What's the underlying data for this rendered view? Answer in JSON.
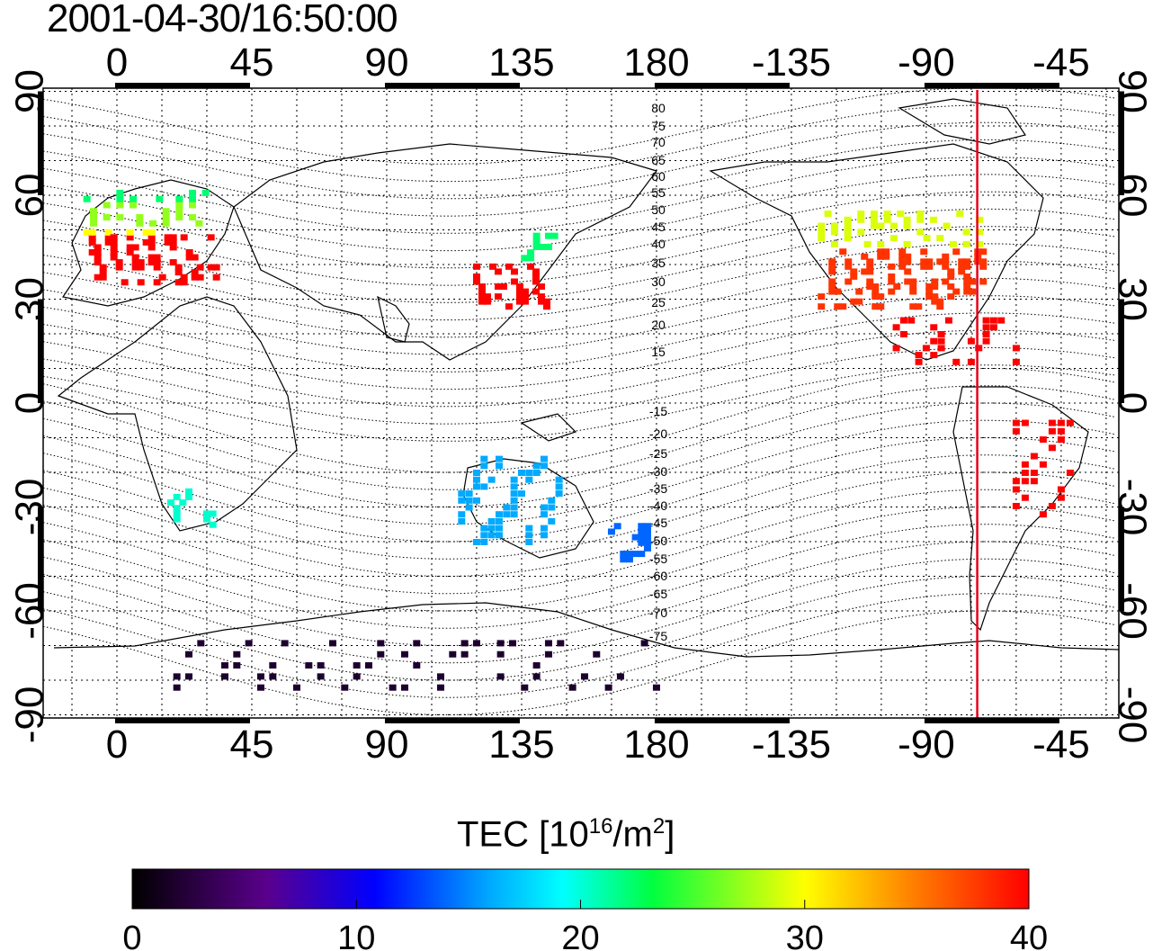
{
  "timestamp": "2001-04-30/16:50:00",
  "map": {
    "top_longitude_ticks": [
      "0",
      "45",
      "90",
      "135",
      "180",
      "-135",
      "-90",
      "-45"
    ],
    "bottom_longitude_ticks": [
      "0",
      "45",
      "90",
      "135",
      "180",
      "-135",
      "-90",
      "-45"
    ],
    "left_latitude_ticks": [
      "90",
      "60",
      "30",
      "0",
      "-30",
      "-60",
      "-90"
    ],
    "right_latitude_ticks": [
      "90",
      "60",
      "30",
      "0",
      "-30",
      "-60",
      "-90"
    ],
    "contour_labels": [
      "80",
      "75",
      "70",
      "65",
      "60",
      "55",
      "50",
      "45",
      "40",
      "35",
      "30",
      "25",
      "20",
      "15",
      "-15",
      "-20",
      "-25",
      "-30",
      "-35",
      "-40",
      "-45",
      "-50",
      "-55",
      "-60",
      "-65",
      "-70",
      "-75"
    ],
    "marker_longitude": -73,
    "marker_color": "#e8001c"
  },
  "colorbar": {
    "title_prefix": "TEC  [10",
    "title_exp1": "16",
    "title_mid": "/m",
    "title_exp2": "2",
    "title_suffix": "]",
    "tick_labels": [
      "0",
      "10",
      "20",
      "30",
      "40"
    ],
    "range": [
      0,
      40
    ],
    "colors": [
      "#000000",
      "#4a0080",
      "#0000ff",
      "#00ffff",
      "#00ff00",
      "#ffff00",
      "#ff0000"
    ]
  }
}
